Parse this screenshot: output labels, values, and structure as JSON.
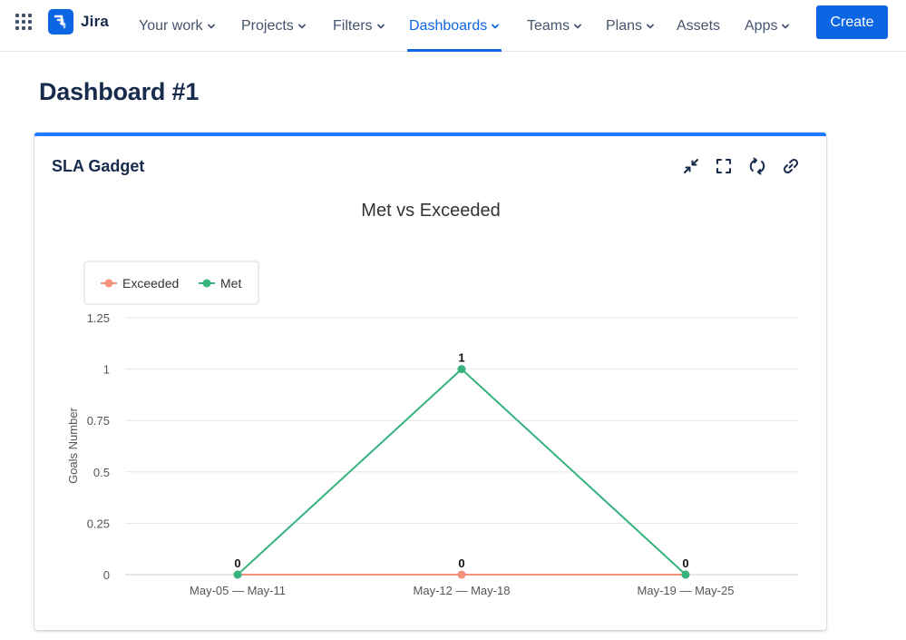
{
  "nav": {
    "product_name": "Jira",
    "items": [
      {
        "label": "Your work",
        "has_dropdown": true,
        "active": false
      },
      {
        "label": "Projects",
        "has_dropdown": true,
        "active": false
      },
      {
        "label": "Filters",
        "has_dropdown": true,
        "active": false
      },
      {
        "label": "Dashboards",
        "has_dropdown": true,
        "active": true
      },
      {
        "label": "Teams",
        "has_dropdown": true,
        "active": false
      },
      {
        "label": "Plans",
        "has_dropdown": true,
        "active": false
      },
      {
        "label": "Assets",
        "has_dropdown": false,
        "active": false
      },
      {
        "label": "Apps",
        "has_dropdown": true,
        "active": false
      }
    ],
    "create_label": "Create",
    "accent_color": "#0c66e4"
  },
  "page": {
    "title": "Dashboard #1"
  },
  "gadget": {
    "title": "SLA Gadget",
    "actions": [
      "minimize-icon",
      "fullscreen-icon",
      "refresh-icon",
      "link-icon"
    ],
    "accent_color": "#1d7afc"
  },
  "chart_data": {
    "type": "line",
    "title": "Met vs Exceeded",
    "ylabel": "Goals Number",
    "xlabel": "",
    "categories": [
      "May-05 — May-11",
      "May-12 — May-18",
      "May-19 — May-25"
    ],
    "yticks": [
      "0",
      "0.25",
      "0.5",
      "0.75",
      "1",
      "1.25"
    ],
    "ylim": [
      0,
      1.25
    ],
    "legend_position": "top-left",
    "grid": true,
    "series": [
      {
        "name": "Exceeded",
        "color": "#f5907a",
        "values": [
          0,
          0,
          0
        ],
        "labels": [
          "0",
          "0",
          "0"
        ]
      },
      {
        "name": "Met",
        "color": "#36b37e",
        "values": [
          0,
          1,
          0
        ],
        "labels": [
          "0",
          "1",
          "0"
        ]
      }
    ]
  }
}
